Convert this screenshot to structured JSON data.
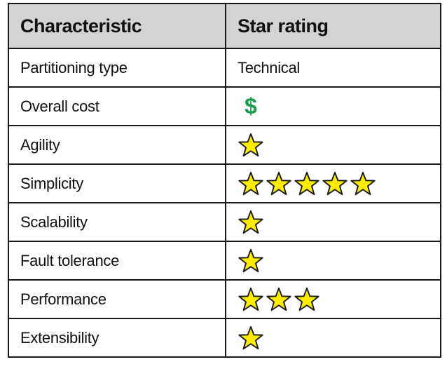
{
  "headers": {
    "characteristic": "Characteristic",
    "rating": "Star rating"
  },
  "rows": [
    {
      "label": "Partitioning type",
      "kind": "text",
      "value": "Technical"
    },
    {
      "label": "Overall cost",
      "kind": "cost",
      "value": "$"
    },
    {
      "label": "Agility",
      "kind": "stars",
      "stars": 1
    },
    {
      "label": "Simplicity",
      "kind": "stars",
      "stars": 5
    },
    {
      "label": "Scalability",
      "kind": "stars",
      "stars": 1
    },
    {
      "label": "Fault tolerance",
      "kind": "stars",
      "stars": 1
    },
    {
      "label": "Performance",
      "kind": "stars",
      "stars": 3
    },
    {
      "label": "Extensibility",
      "kind": "stars",
      "stars": 1
    }
  ],
  "colors": {
    "star_fill": "#ffec00",
    "star_stroke": "#1a1a1a",
    "dollar": "#1a9b4a",
    "header_bg": "#d3d3d3"
  },
  "icons": {
    "star": "star-icon",
    "cost": "dollar-icon"
  }
}
